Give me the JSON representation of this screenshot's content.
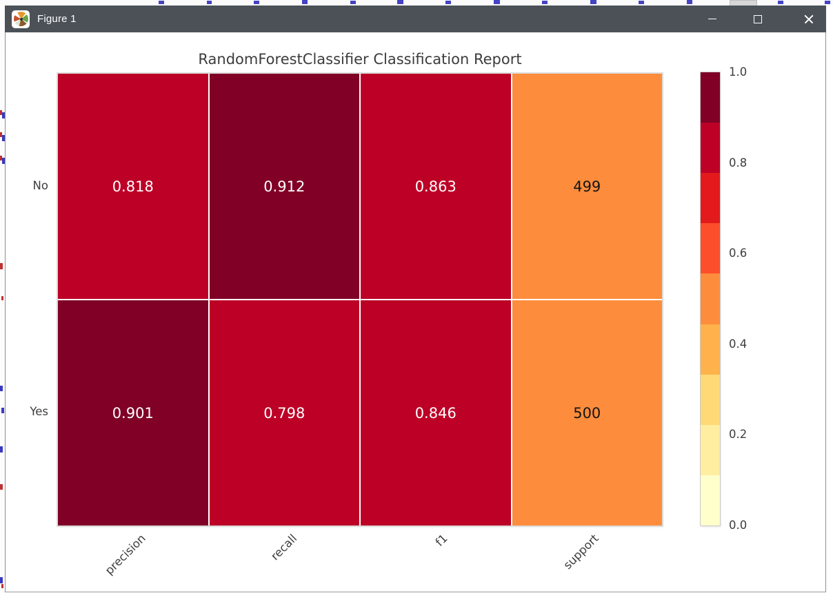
{
  "window": {
    "title": "Figure 1",
    "icon": "matplotlib-logo",
    "controls": {
      "minimize": "minimize",
      "maximize": "maximize",
      "close": "close"
    }
  },
  "chart_data": {
    "type": "heatmap",
    "title": "RandomForestClassifier Classification Report",
    "rows": [
      "No",
      "Yes"
    ],
    "columns": [
      "precision",
      "recall",
      "f1",
      "support"
    ],
    "values": [
      [
        0.818,
        0.912,
        0.863,
        499
      ],
      [
        0.901,
        0.798,
        0.846,
        500
      ]
    ],
    "cell_labels": [
      [
        "0.818",
        "0.912",
        "0.863",
        "499"
      ],
      [
        "0.901",
        "0.798",
        "0.846",
        "500"
      ]
    ],
    "cell_colors": [
      [
        "#bd0026",
        "#800026",
        "#bd0026",
        "#fd8d3c"
      ],
      [
        "#800026",
        "#bd0026",
        "#bd0026",
        "#fd8d3c"
      ]
    ],
    "cell_text_colors": [
      [
        "#ffffff",
        "#ffffff",
        "#ffffff",
        "#141414"
      ],
      [
        "#ffffff",
        "#ffffff",
        "#ffffff",
        "#141414"
      ]
    ],
    "colormap": "YlOrRd",
    "value_range": [
      0,
      1
    ],
    "grid": false,
    "colorbar": {
      "position": "right",
      "band_colors_top_to_bottom": [
        "#800026",
        "#bd0026",
        "#e31a1c",
        "#fc4e2a",
        "#fd8d3c",
        "#feb24c",
        "#fed976",
        "#ffeda0",
        "#ffffcc"
      ],
      "ticks": [
        {
          "label": "1.0",
          "value": 1.0
        },
        {
          "label": "0.8",
          "value": 0.8
        },
        {
          "label": "0.6",
          "value": 0.6
        },
        {
          "label": "0.4",
          "value": 0.4
        },
        {
          "label": "0.2",
          "value": 0.2
        },
        {
          "label": "0.0",
          "value": 0.0
        }
      ]
    }
  },
  "colors": {
    "titlebar_bg": "#4b5157",
    "titlebar_text": "#ffffff",
    "figure_bg": "#ffffff",
    "axis_text": "#3d3d3d",
    "cell_separator": "#ffffff",
    "frame_border": "#cccccc"
  }
}
